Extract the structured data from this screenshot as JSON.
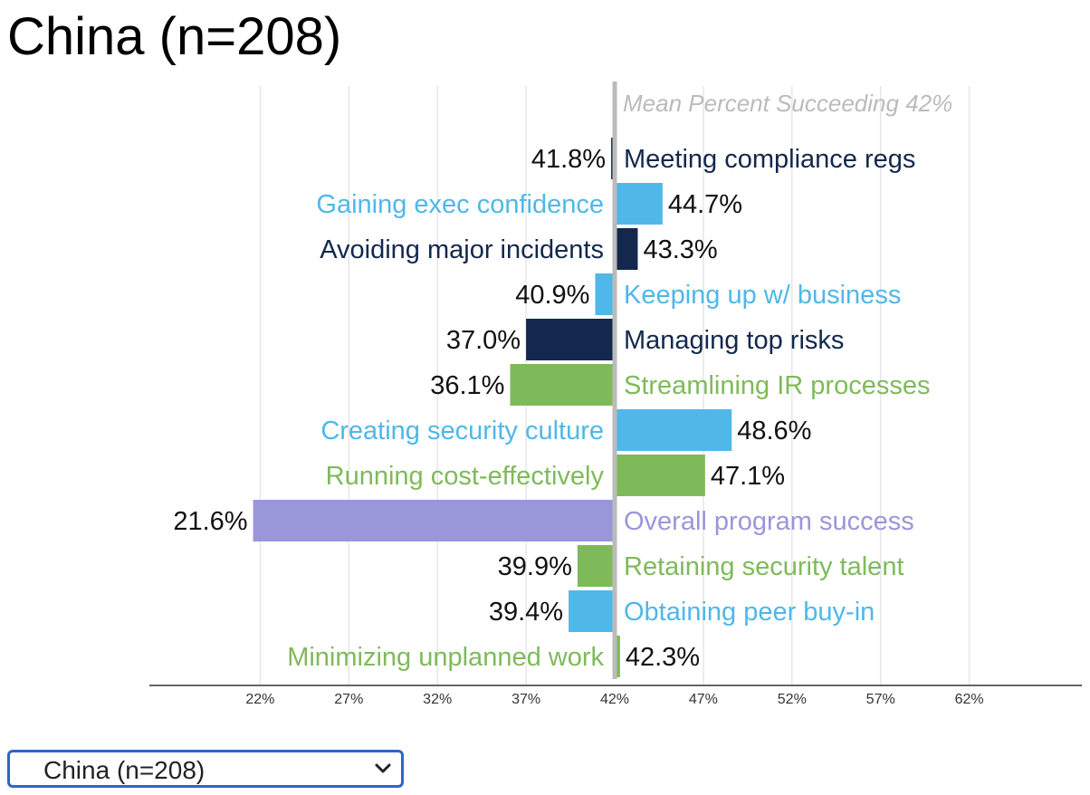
{
  "title": "China (n=208)",
  "selector": {
    "value": "China (n=208)"
  },
  "chart_data": {
    "type": "bar",
    "orientation": "horizontal-diverging",
    "baseline": 42,
    "baseline_label": "Mean Percent Succeeding 42%",
    "xlim": [
      17,
      70
    ],
    "xticks": [
      22,
      27,
      32,
      37,
      42,
      47,
      52,
      57,
      62
    ],
    "xtick_labels": [
      "22%",
      "27%",
      "32%",
      "37%",
      "42%",
      "47%",
      "52%",
      "57%",
      "62%"
    ],
    "colors": {
      "dark": "#13284c",
      "light_blue": "#4fb8e8",
      "green": "#7fba5a",
      "purple": "#9a96da",
      "baseline": "#bbbbbb",
      "grid": "#e6e6e6"
    },
    "bars": [
      {
        "label": "Meeting compliance regs",
        "value": 41.8,
        "value_label": "41.8%",
        "color": "dark"
      },
      {
        "label": "Gaining exec confidence",
        "value": 44.7,
        "value_label": "44.7%",
        "color": "light_blue"
      },
      {
        "label": "Avoiding major incidents",
        "value": 43.3,
        "value_label": "43.3%",
        "color": "dark"
      },
      {
        "label": "Keeping up w/ business",
        "value": 40.9,
        "value_label": "40.9%",
        "color": "light_blue"
      },
      {
        "label": "Managing top risks",
        "value": 37.0,
        "value_label": "37.0%",
        "color": "dark"
      },
      {
        "label": "Streamlining IR processes",
        "value": 36.1,
        "value_label": "36.1%",
        "color": "green"
      },
      {
        "label": "Creating security culture",
        "value": 48.6,
        "value_label": "48.6%",
        "color": "light_blue"
      },
      {
        "label": "Running cost-effectively",
        "value": 47.1,
        "value_label": "47.1%",
        "color": "green"
      },
      {
        "label": "Overall program success",
        "value": 21.6,
        "value_label": "21.6%",
        "color": "purple"
      },
      {
        "label": "Retaining security talent",
        "value": 39.9,
        "value_label": "39.9%",
        "color": "green"
      },
      {
        "label": "Obtaining peer buy-in",
        "value": 39.4,
        "value_label": "39.4%",
        "color": "light_blue"
      },
      {
        "label": "Minimizing unplanned work",
        "value": 42.3,
        "value_label": "42.3%",
        "color": "green"
      }
    ]
  }
}
